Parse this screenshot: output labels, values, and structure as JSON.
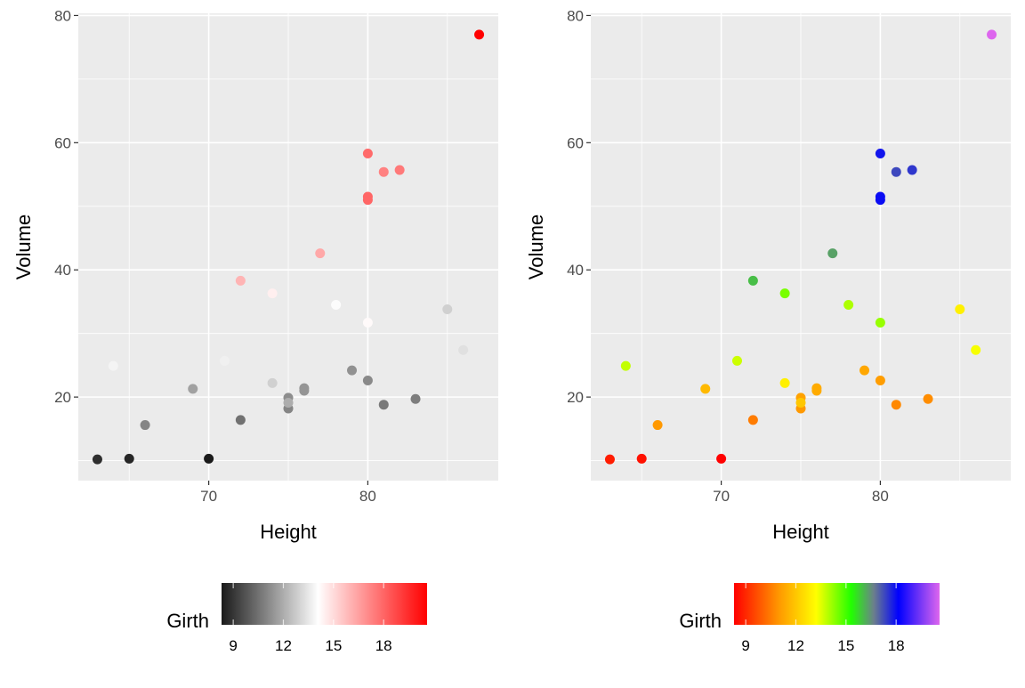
{
  "chart_data": [
    {
      "type": "scatter",
      "xlabel": "Height",
      "ylabel": "Volume",
      "xlim": [
        61.8,
        88.2
      ],
      "ylim": [
        6.86,
        80.34
      ],
      "xticks": [
        70,
        80
      ],
      "yticks": [
        20,
        40,
        60,
        80
      ],
      "grid": true,
      "legend": {
        "title": "Girth",
        "placement": "bottom",
        "ticks": [
          9,
          12,
          15,
          18
        ],
        "range": [
          8.3,
          20.6
        ]
      },
      "color_scale": [
        {
          "at": 0,
          "color": "#1a1a1a"
        },
        {
          "at": 0.47,
          "color": "#ffffff"
        },
        {
          "at": 1,
          "color": "#ff0000"
        }
      ]
    },
    {
      "type": "scatter",
      "xlabel": "Height",
      "ylabel": "Volume",
      "xlim": [
        61.8,
        88.2
      ],
      "ylim": [
        6.86,
        80.34
      ],
      "xticks": [
        70,
        80
      ],
      "yticks": [
        20,
        40,
        60,
        80
      ],
      "grid": true,
      "legend": {
        "title": "Girth",
        "placement": "bottom",
        "ticks": [
          9,
          12,
          15,
          18
        ],
        "range": [
          8.3,
          20.6
        ]
      },
      "color_scale": [
        {
          "at": 0,
          "color": "#ff0000"
        },
        {
          "at": 0.22,
          "color": "#ff9900"
        },
        {
          "at": 0.4,
          "color": "#ffff00"
        },
        {
          "at": 0.57,
          "color": "#22ff00"
        },
        {
          "at": 0.68,
          "color": "#6c7f8c"
        },
        {
          "at": 0.8,
          "color": "#0000ff"
        },
        {
          "at": 1,
          "color": "#dd66ee"
        }
      ]
    }
  ],
  "points": [
    {
      "girth": 8.3,
      "height": 70,
      "volume": 10.3
    },
    {
      "girth": 8.6,
      "height": 65,
      "volume": 10.3
    },
    {
      "girth": 8.8,
      "height": 63,
      "volume": 10.2
    },
    {
      "girth": 10.5,
      "height": 72,
      "volume": 16.4
    },
    {
      "girth": 10.7,
      "height": 81,
      "volume": 18.8
    },
    {
      "girth": 10.8,
      "height": 83,
      "volume": 19.7
    },
    {
      "girth": 11.0,
      "height": 66,
      "volume": 15.6
    },
    {
      "girth": 11.0,
      "height": 75,
      "volume": 18.2
    },
    {
      "girth": 11.1,
      "height": 80,
      "volume": 22.6
    },
    {
      "girth": 11.2,
      "height": 75,
      "volume": 19.9
    },
    {
      "girth": 11.3,
      "height": 79,
      "volume": 24.2
    },
    {
      "girth": 11.4,
      "height": 76,
      "volume": 21.0
    },
    {
      "girth": 11.4,
      "height": 76,
      "volume": 21.4
    },
    {
      "girth": 11.7,
      "height": 69,
      "volume": 21.3
    },
    {
      "girth": 12.0,
      "height": 75,
      "volume": 19.1
    },
    {
      "girth": 12.9,
      "height": 74,
      "volume": 22.2
    },
    {
      "girth": 12.9,
      "height": 85,
      "volume": 33.8
    },
    {
      "girth": 13.3,
      "height": 86,
      "volume": 27.4
    },
    {
      "girth": 13.7,
      "height": 71,
      "volume": 25.7
    },
    {
      "girth": 13.8,
      "height": 64,
      "volume": 24.9
    },
    {
      "girth": 14.0,
      "height": 78,
      "volume": 34.5
    },
    {
      "girth": 14.2,
      "height": 80,
      "volume": 31.7
    },
    {
      "girth": 14.5,
      "height": 74,
      "volume": 36.3
    },
    {
      "girth": 16.0,
      "height": 72,
      "volume": 38.3
    },
    {
      "girth": 16.3,
      "height": 77,
      "volume": 42.6
    },
    {
      "girth": 17.3,
      "height": 81,
      "volume": 55.4
    },
    {
      "girth": 17.5,
      "height": 82,
      "volume": 55.7
    },
    {
      "girth": 17.9,
      "height": 80,
      "volume": 58.3
    },
    {
      "girth": 18.0,
      "height": 80,
      "volume": 51.5
    },
    {
      "girth": 18.0,
      "height": 80,
      "volume": 51.0
    },
    {
      "girth": 20.6,
      "height": 87,
      "volume": 77.0
    }
  ]
}
